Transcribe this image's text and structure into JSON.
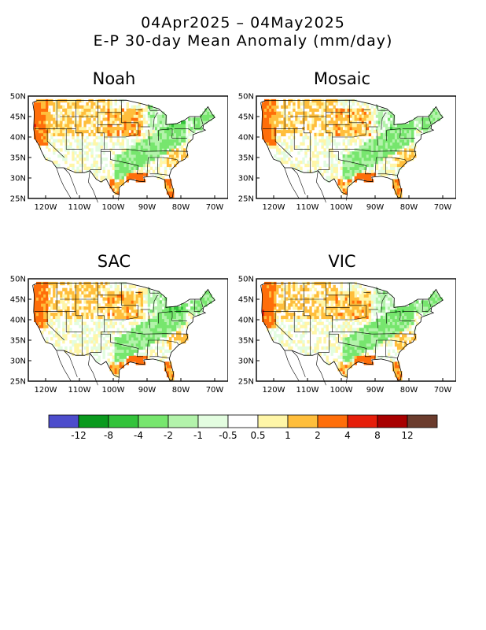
{
  "figure": {
    "title_line1": "04Apr2025 – 04May2025",
    "title_line2": "E-P 30-day Mean Anomaly (mm/day)"
  },
  "panels": [
    {
      "name": "Noah"
    },
    {
      "name": "Mosaic"
    },
    {
      "name": "SAC"
    },
    {
      "name": "VIC"
    }
  ],
  "axes": {
    "lat_labels": [
      "50N",
      "45N",
      "40N",
      "35N",
      "30N",
      "25N"
    ],
    "lon_labels": [
      "120W",
      "110W",
      "100W",
      "90W",
      "80W",
      "70W"
    ]
  },
  "colorbar": {
    "colors": [
      "#4d4dcc",
      "#0a9a1e",
      "#33c33b",
      "#77e66e",
      "#b3f3ab",
      "#e3fde0",
      "#ffffff",
      "#fff6a8",
      "#ffbe3c",
      "#ff6e0a",
      "#e61e0a",
      "#a80000",
      "#6b3c2d"
    ],
    "tick_labels": [
      "-12",
      "-8",
      "-4",
      "-2",
      "-1",
      "-0.5",
      "0.5",
      "1",
      "2",
      "4",
      "8",
      "12"
    ]
  }
}
